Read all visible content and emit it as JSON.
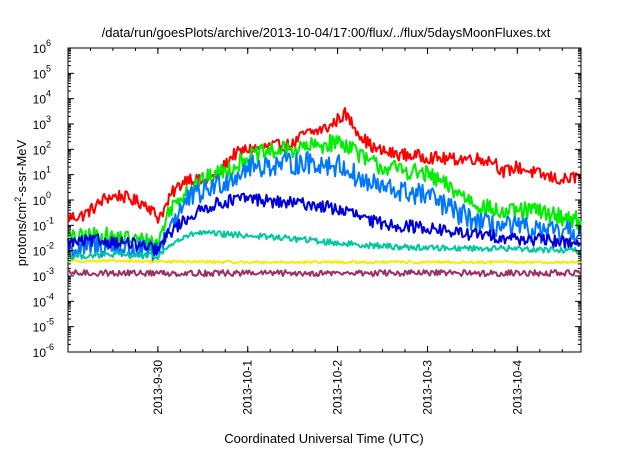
{
  "chart_data": {
    "type": "line",
    "title": "/data/run/goesPlots/archive/2013-10-04/17:00/flux/../flux/5daysMoonFluxes.txt",
    "xlabel": "Coordinated Universal Time (UTC)",
    "ylabel": "protons/cm2-s-sr-MeV",
    "ylabel_parts": [
      "protons/cm",
      "2",
      "-s-sr-MeV"
    ],
    "y_scale": "log",
    "ylim": [
      1e-06,
      1000000.0
    ],
    "y_ticks": [
      {
        "value": 1e-06,
        "base": "10",
        "exp": "-6"
      },
      {
        "value": 1e-05,
        "base": "10",
        "exp": "-5"
      },
      {
        "value": 0.0001,
        "base": "10",
        "exp": "-4"
      },
      {
        "value": 0.001,
        "base": "10",
        "exp": "-3"
      },
      {
        "value": 0.01,
        "base": "10",
        "exp": "-2"
      },
      {
        "value": 0.1,
        "base": "10",
        "exp": "-1"
      },
      {
        "value": 1,
        "base": "10",
        "exp": "0"
      },
      {
        "value": 10.0,
        "base": "10",
        "exp": "1"
      },
      {
        "value": 100.0,
        "base": "10",
        "exp": "2"
      },
      {
        "value": 1000.0,
        "base": "10",
        "exp": "3"
      },
      {
        "value": 10000.0,
        "base": "10",
        "exp": "4"
      },
      {
        "value": 100000.0,
        "base": "10",
        "exp": "5"
      },
      {
        "value": 1000000.0,
        "base": "10",
        "exp": "6"
      }
    ],
    "xlim": [
      "2013-09-29T00:00",
      "2013-10-04T17:00"
    ],
    "x_ticks": [
      {
        "value": "2013-09-30T00:00",
        "label": "2013-9-30"
      },
      {
        "value": "2013-10-01T00:00",
        "label": "2013-10-1"
      },
      {
        "value": "2013-10-02T00:00",
        "label": "2013-10-2"
      },
      {
        "value": "2013-10-03T00:00",
        "label": "2013-10-3"
      },
      {
        "value": "2013-10-04T00:00",
        "label": "2013-10-4"
      }
    ],
    "grid": false,
    "series": [
      {
        "color": "#ff0000",
        "jitter": 0.25,
        "points": [
          [
            "2013-09-29T00:00",
            0.2
          ],
          [
            "2013-09-29T04:00",
            0.25
          ],
          [
            "2013-09-29T07:00",
            0.5
          ],
          [
            "2013-09-29T10:00",
            1.2
          ],
          [
            "2013-09-29T14:00",
            1.5
          ],
          [
            "2013-09-29T18:00",
            0.9
          ],
          [
            "2013-09-29T21:00",
            0.7
          ],
          [
            "2013-09-30T00:00",
            0.2
          ],
          [
            "2013-09-30T02:00",
            0.5
          ],
          [
            "2013-09-30T04:00",
            2
          ],
          [
            "2013-09-30T08:00",
            8
          ],
          [
            "2013-09-30T12:00",
            5
          ],
          [
            "2013-09-30T16:00",
            10
          ],
          [
            "2013-09-30T20:00",
            60
          ],
          [
            "2013-10-01T00:00",
            100
          ],
          [
            "2013-10-01T06:00",
            130
          ],
          [
            "2013-10-01T12:00",
            150
          ],
          [
            "2013-10-01T15:00",
            400
          ],
          [
            "2013-10-01T18:00",
            500
          ],
          [
            "2013-10-01T22:00",
            800
          ],
          [
            "2013-10-02T00:00",
            1500
          ],
          [
            "2013-10-02T02:00",
            2500
          ],
          [
            "2013-10-02T04:00",
            1000
          ],
          [
            "2013-10-02T07:00",
            250
          ],
          [
            "2013-10-02T10:00",
            100
          ],
          [
            "2013-10-02T14:00",
            70
          ],
          [
            "2013-10-02T18:00",
            60
          ],
          [
            "2013-10-03T00:00",
            50
          ],
          [
            "2013-10-03T06:00",
            40
          ],
          [
            "2013-10-03T12:00",
            45
          ],
          [
            "2013-10-03T18:00",
            35
          ],
          [
            "2013-10-03T20:00",
            12
          ],
          [
            "2013-10-04T00:00",
            20
          ],
          [
            "2013-10-04T06:00",
            10
          ],
          [
            "2013-10-04T12:00",
            6
          ],
          [
            "2013-10-04T17:00",
            9
          ]
        ]
      },
      {
        "color": "#00ee00",
        "jitter": 0.35,
        "points": [
          [
            "2013-09-29T00:00",
            0.03
          ],
          [
            "2013-09-29T08:00",
            0.04
          ],
          [
            "2013-09-29T16:00",
            0.03
          ],
          [
            "2013-09-30T00:00",
            0.02
          ],
          [
            "2013-09-30T03:00",
            0.4
          ],
          [
            "2013-09-30T08:00",
            3
          ],
          [
            "2013-09-30T14:00",
            8
          ],
          [
            "2013-09-30T20:00",
            20
          ],
          [
            "2013-10-01T00:00",
            50
          ],
          [
            "2013-10-01T06:00",
            80
          ],
          [
            "2013-10-01T12:00",
            100
          ],
          [
            "2013-10-01T16:00",
            120
          ],
          [
            "2013-10-01T20:00",
            150
          ],
          [
            "2013-10-02T00:00",
            200
          ],
          [
            "2013-10-02T04:00",
            130
          ],
          [
            "2013-10-02T07:00",
            40
          ],
          [
            "2013-10-02T12:00",
            20
          ],
          [
            "2013-10-02T18:00",
            15
          ],
          [
            "2013-10-03T00:00",
            10
          ],
          [
            "2013-10-03T08:00",
            2
          ],
          [
            "2013-10-03T14:00",
            0.6
          ],
          [
            "2013-10-03T20:00",
            0.3
          ],
          [
            "2013-10-04T04:00",
            0.4
          ],
          [
            "2013-10-04T10:00",
            0.25
          ],
          [
            "2013-10-04T17:00",
            0.15
          ]
        ]
      },
      {
        "color": "#0077ff",
        "jitter": 0.45,
        "points": [
          [
            "2013-09-29T00:00",
            0.01
          ],
          [
            "2013-09-29T08:00",
            0.015
          ],
          [
            "2013-09-29T16:00",
            0.012
          ],
          [
            "2013-09-30T00:00",
            0.008
          ],
          [
            "2013-09-30T03:00",
            0.1
          ],
          [
            "2013-09-30T08:00",
            1
          ],
          [
            "2013-09-30T14:00",
            3
          ],
          [
            "2013-09-30T20:00",
            8
          ],
          [
            "2013-10-01T00:00",
            20
          ],
          [
            "2013-10-01T08:00",
            25
          ],
          [
            "2013-10-01T16:00",
            30
          ],
          [
            "2013-10-01T22:00",
            25
          ],
          [
            "2013-10-02T02:00",
            20
          ],
          [
            "2013-10-02T06:00",
            6
          ],
          [
            "2013-10-02T12:00",
            3
          ],
          [
            "2013-10-02T18:00",
            2
          ],
          [
            "2013-10-03T00:00",
            1.5
          ],
          [
            "2013-10-03T08:00",
            0.3
          ],
          [
            "2013-10-03T16:00",
            0.1
          ],
          [
            "2013-10-04T00:00",
            0.08
          ],
          [
            "2013-10-04T08:00",
            0.05
          ],
          [
            "2013-10-04T17:00",
            0.05
          ]
        ]
      },
      {
        "color": "#0000dd",
        "jitter": 0.25,
        "points": [
          [
            "2013-09-29T00:00",
            0.02
          ],
          [
            "2013-09-29T08:00",
            0.025
          ],
          [
            "2013-09-29T16:00",
            0.02
          ],
          [
            "2013-09-30T00:00",
            0.01
          ],
          [
            "2013-09-30T03:00",
            0.05
          ],
          [
            "2013-09-30T08:00",
            0.2
          ],
          [
            "2013-09-30T14:00",
            0.6
          ],
          [
            "2013-09-30T20:00",
            1
          ],
          [
            "2013-10-01T00:00",
            1.2
          ],
          [
            "2013-10-01T08:00",
            0.8
          ],
          [
            "2013-10-01T16:00",
            0.7
          ],
          [
            "2013-10-01T22:00",
            0.5
          ],
          [
            "2013-10-02T04:00",
            0.3
          ],
          [
            "2013-10-02T08:00",
            0.15
          ],
          [
            "2013-10-02T16:00",
            0.1
          ],
          [
            "2013-10-03T00:00",
            0.08
          ],
          [
            "2013-10-03T08:00",
            0.05
          ],
          [
            "2013-10-03T16:00",
            0.04
          ],
          [
            "2013-10-04T00:00",
            0.03
          ],
          [
            "2013-10-04T08:00",
            0.025
          ],
          [
            "2013-10-04T17:00",
            0.02
          ]
        ]
      },
      {
        "color": "#00c8a0",
        "jitter": 0.12,
        "points": [
          [
            "2013-09-29T00:00",
            0.006
          ],
          [
            "2013-09-29T12:00",
            0.007
          ],
          [
            "2013-09-30T00:00",
            0.006
          ],
          [
            "2013-09-30T04:00",
            0.02
          ],
          [
            "2013-09-30T10:00",
            0.05
          ],
          [
            "2013-10-01T00:00",
            0.04
          ],
          [
            "2013-10-01T12:00",
            0.03
          ],
          [
            "2013-10-02T00:00",
            0.02
          ],
          [
            "2013-10-02T12:00",
            0.015
          ],
          [
            "2013-10-03T00:00",
            0.013
          ],
          [
            "2013-10-04T00:00",
            0.012
          ],
          [
            "2013-10-04T17:00",
            0.01
          ]
        ]
      },
      {
        "color": "#f0f000",
        "jitter": 0.05,
        "points": [
          [
            "2013-09-29T00:00",
            0.004
          ],
          [
            "2013-10-01T00:00",
            0.0035
          ],
          [
            "2013-10-03T00:00",
            0.0035
          ],
          [
            "2013-10-04T17:00",
            0.0035
          ]
        ]
      },
      {
        "color": "#993366",
        "jitter": 0.12,
        "points": [
          [
            "2013-09-29T00:00",
            0.0013
          ],
          [
            "2013-10-01T00:00",
            0.0013
          ],
          [
            "2013-10-03T00:00",
            0.0013
          ],
          [
            "2013-10-04T17:00",
            0.0013
          ]
        ]
      }
    ]
  }
}
